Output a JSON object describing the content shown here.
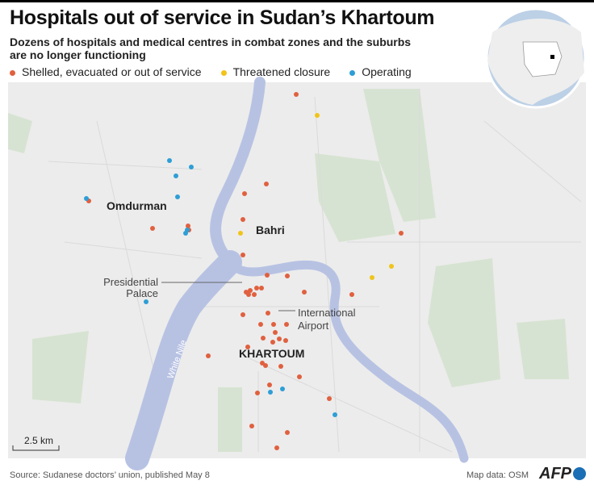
{
  "header": {
    "title": "Hospitals out of service in Sudan’s Khartoum",
    "subtitle": "Dozens of hospitals and medical centres in combat zones and the suburbs are no longer functioning"
  },
  "legend": [
    "Shelled, evacuated or out of service",
    "Threatened closure",
    "Operating"
  ],
  "map": {
    "labels": {
      "omdurman": "Omdurman",
      "bahri": "Bahri",
      "khartoum": "KHARTOUM",
      "white_nile": "White Nile",
      "presidential_palace": [
        "Presidential",
        "Palace"
      ],
      "airport": [
        "International",
        "Airport"
      ]
    },
    "scale": "2.5 km"
  },
  "footer": {
    "source": "Source: Sudanese doctors’ union, published May 8",
    "map_data": "Map data: OSM",
    "logo": "AFP"
  }
}
